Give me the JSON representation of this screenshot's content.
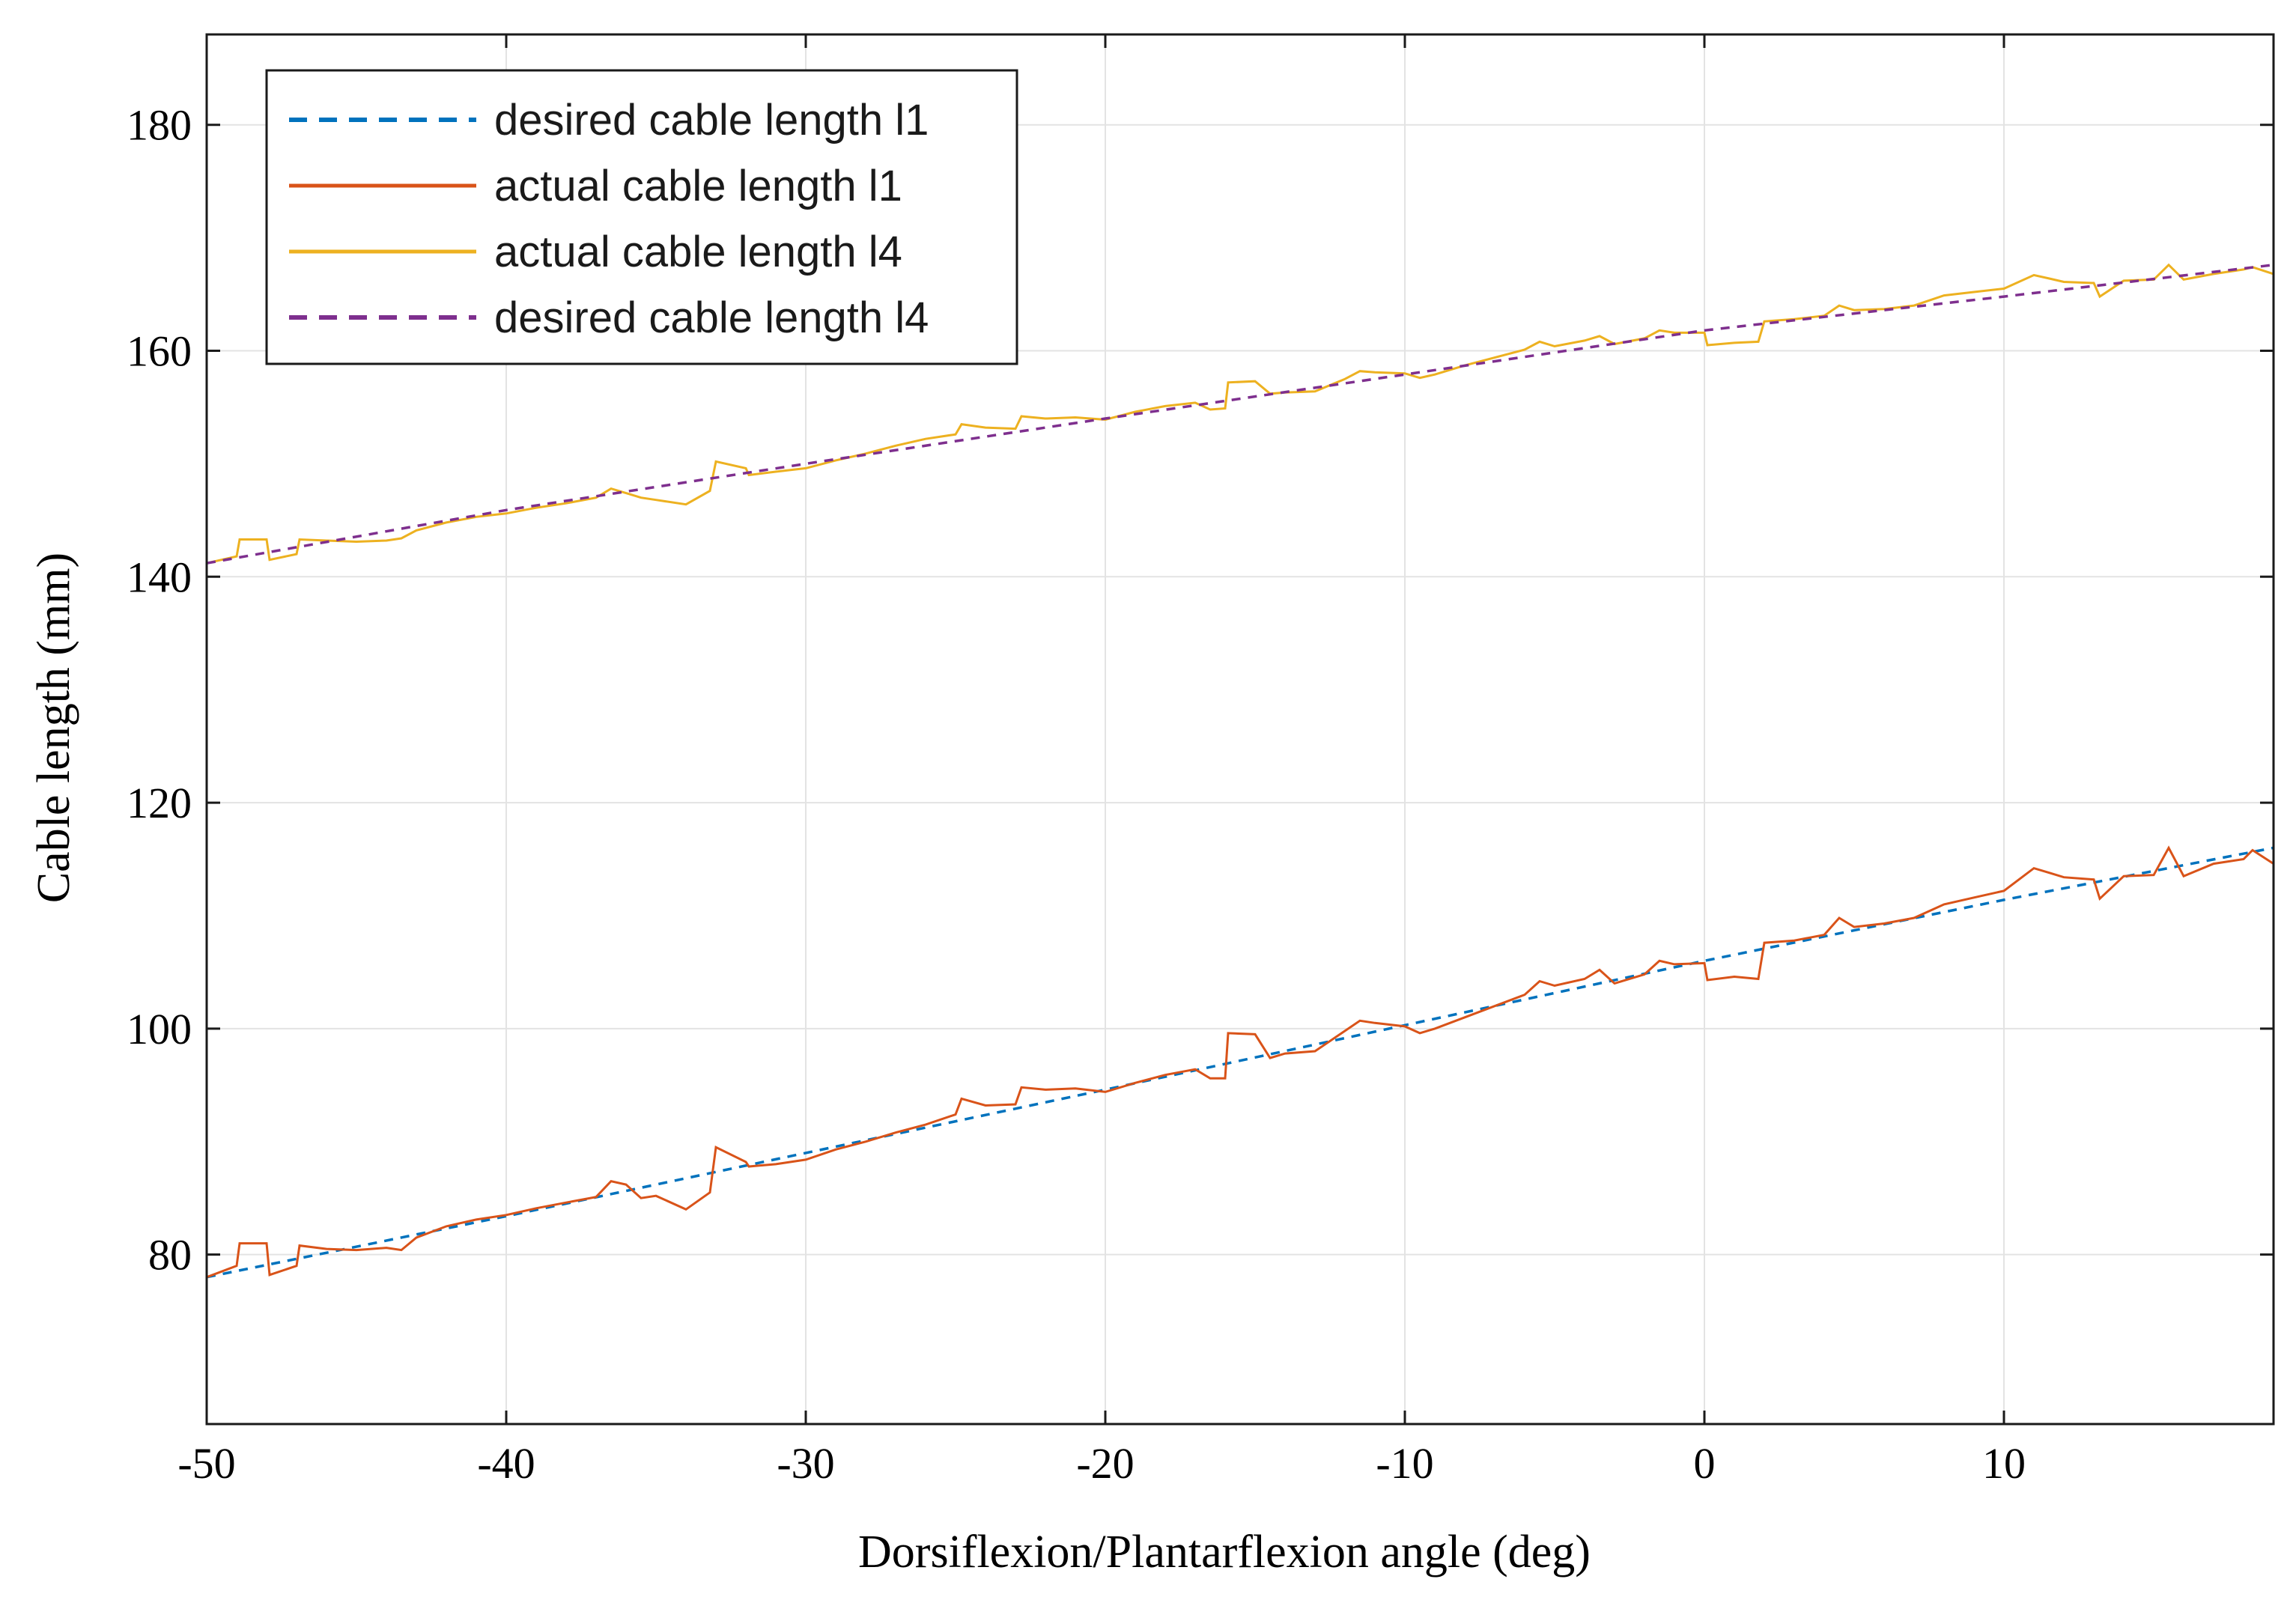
{
  "chart_data": {
    "type": "line",
    "title": "",
    "xlabel": "Dorsiflexion/Plantarflexion angle (deg)",
    "ylabel": "Cable length (mm)",
    "xlim": [
      -50,
      19
    ],
    "ylim": [
      65,
      188
    ],
    "xticks": [
      -50,
      -40,
      -30,
      -20,
      -10,
      0,
      10
    ],
    "yticks": [
      80,
      100,
      120,
      140,
      160,
      180
    ],
    "grid": true,
    "legend_position": "top-left",
    "series": [
      {
        "name": "desired cable length l1",
        "color": "#0072BD",
        "style": "dashed",
        "x": [
          -50,
          -40,
          -30,
          -20,
          -10,
          0,
          10,
          19
        ],
        "y": [
          78,
          83.4,
          89,
          94.6,
          100.3,
          106,
          111.4,
          116
        ]
      },
      {
        "name": "actual cable length l1",
        "color": "#D95319",
        "style": "solid",
        "x": [
          -50,
          -49,
          -48.9,
          -48,
          -47.9,
          -47,
          -46.9,
          -46,
          -45,
          -44,
          -43.5,
          -43,
          -42,
          -41,
          -40,
          -39,
          -38,
          -37,
          -36.5,
          -36,
          -35.5,
          -35,
          -34,
          -33.2,
          -33,
          -32,
          -31.9,
          -31,
          -30,
          -29,
          -28,
          -27,
          -26,
          -25,
          -24.8,
          -24,
          -23,
          -22.8,
          -22,
          -21,
          -20,
          -19,
          -18,
          -17,
          -16.5,
          -16,
          -15.9,
          -15,
          -14.5,
          -14,
          -13,
          -12,
          -11.5,
          -11,
          -10,
          -9.5,
          -9,
          -8,
          -7,
          -6,
          -5.5,
          -5,
          -4,
          -3.5,
          -3,
          -2,
          -1.5,
          -1,
          0,
          0.1,
          1,
          1.8,
          2,
          3,
          4,
          4.5,
          5,
          6,
          7,
          8,
          9,
          10,
          11,
          11.5,
          12,
          13,
          13.2,
          14,
          15,
          15.5,
          16,
          17,
          18,
          18.3,
          19
        ],
        "y": [
          78,
          79,
          81,
          81,
          78.2,
          79,
          80.8,
          80.5,
          80.4,
          80.6,
          80.4,
          81.5,
          82.5,
          83.1,
          83.5,
          84.1,
          84.6,
          85.1,
          86.5,
          86.2,
          85,
          85.2,
          84,
          85.5,
          89.5,
          88.2,
          87.8,
          88,
          88.4,
          89.3,
          90,
          90.8,
          91.5,
          92.4,
          93.8,
          93.2,
          93.3,
          94.8,
          94.6,
          94.7,
          94.4,
          95.2,
          95.9,
          96.4,
          95.6,
          95.6,
          99.6,
          99.5,
          97.4,
          97.8,
          98,
          99.8,
          100.7,
          100.5,
          100.2,
          99.6,
          100,
          101,
          102,
          103,
          104.2,
          103.8,
          104.4,
          105.2,
          104,
          104.8,
          106,
          105.7,
          105.8,
          104.3,
          104.6,
          104.4,
          107.6,
          107.8,
          108.3,
          109.8,
          109,
          109.3,
          109.8,
          111,
          111.6,
          112.2,
          114.2,
          113.8,
          113.4,
          113.2,
          111.5,
          113.5,
          113.6,
          116,
          113.5,
          114.6,
          115,
          115.8,
          114.6
        ],
        "y_note": "approximate step trace read from plot"
      },
      {
        "name": "actual cable length l4",
        "color": "#EDB120",
        "style": "solid",
        "x": [
          -50,
          -49,
          -48.9,
          -48,
          -47.9,
          -47,
          -46.9,
          -46,
          -45,
          -44,
          -43.5,
          -43,
          -42,
          -41,
          -40,
          -39,
          -38,
          -37,
          -36.5,
          -36,
          -35.5,
          -35,
          -34,
          -33.2,
          -33,
          -32,
          -31.9,
          -31,
          -30,
          -29,
          -28,
          -27,
          -26,
          -25,
          -24.8,
          -24,
          -23,
          -22.8,
          -22,
          -21,
          -20,
          -19,
          -18,
          -17,
          -16.5,
          -16,
          -15.9,
          -15,
          -14.5,
          -14,
          -13,
          -12,
          -11.5,
          -11,
          -10,
          -9.5,
          -9,
          -8,
          -7,
          -6,
          -5.5,
          -5,
          -4,
          -3.5,
          -3,
          -2,
          -1.5,
          -1,
          0,
          0.1,
          1,
          1.8,
          2,
          3,
          4,
          4.5,
          5,
          6,
          7,
          8,
          9,
          10,
          11,
          11.5,
          12,
          13,
          13.2,
          14,
          15,
          15.5,
          16,
          17,
          18,
          18.3,
          19
        ],
        "y": [
          141.2,
          141.8,
          143.3,
          143.3,
          141.5,
          142,
          143.3,
          143.2,
          143.1,
          143.2,
          143.4,
          144.1,
          144.8,
          145.3,
          145.6,
          146.1,
          146.5,
          147,
          147.8,
          147.4,
          147,
          146.8,
          146.4,
          147.6,
          150.2,
          149.6,
          149,
          149.3,
          149.6,
          150.3,
          150.9,
          151.6,
          152.2,
          152.6,
          153.5,
          153.2,
          153.1,
          154.2,
          154,
          154.1,
          153.9,
          154.6,
          155.1,
          155.4,
          154.8,
          154.9,
          157.2,
          157.3,
          156.2,
          156.3,
          156.4,
          157.5,
          158.2,
          158.1,
          158,
          157.6,
          157.9,
          158.7,
          159.4,
          160.1,
          160.8,
          160.4,
          160.9,
          161.3,
          160.6,
          161.1,
          161.8,
          161.6,
          161.6,
          160.5,
          160.7,
          160.8,
          162.6,
          162.8,
          163.1,
          164,
          163.6,
          163.7,
          164,
          164.9,
          165.2,
          165.5,
          166.7,
          166.4,
          166.1,
          166,
          164.8,
          166.2,
          166.3,
          167.6,
          166.3,
          166.8,
          167.2,
          167.4,
          166.8
        ]
      },
      {
        "name": "desired cable length l4",
        "color": "#7E2F8E",
        "style": "dashed",
        "x": [
          -50,
          -40,
          -30,
          -20,
          -10,
          0,
          10,
          19
        ],
        "y": [
          141.2,
          145.9,
          150,
          154,
          157.9,
          161.8,
          164.8,
          167.6
        ]
      }
    ]
  }
}
